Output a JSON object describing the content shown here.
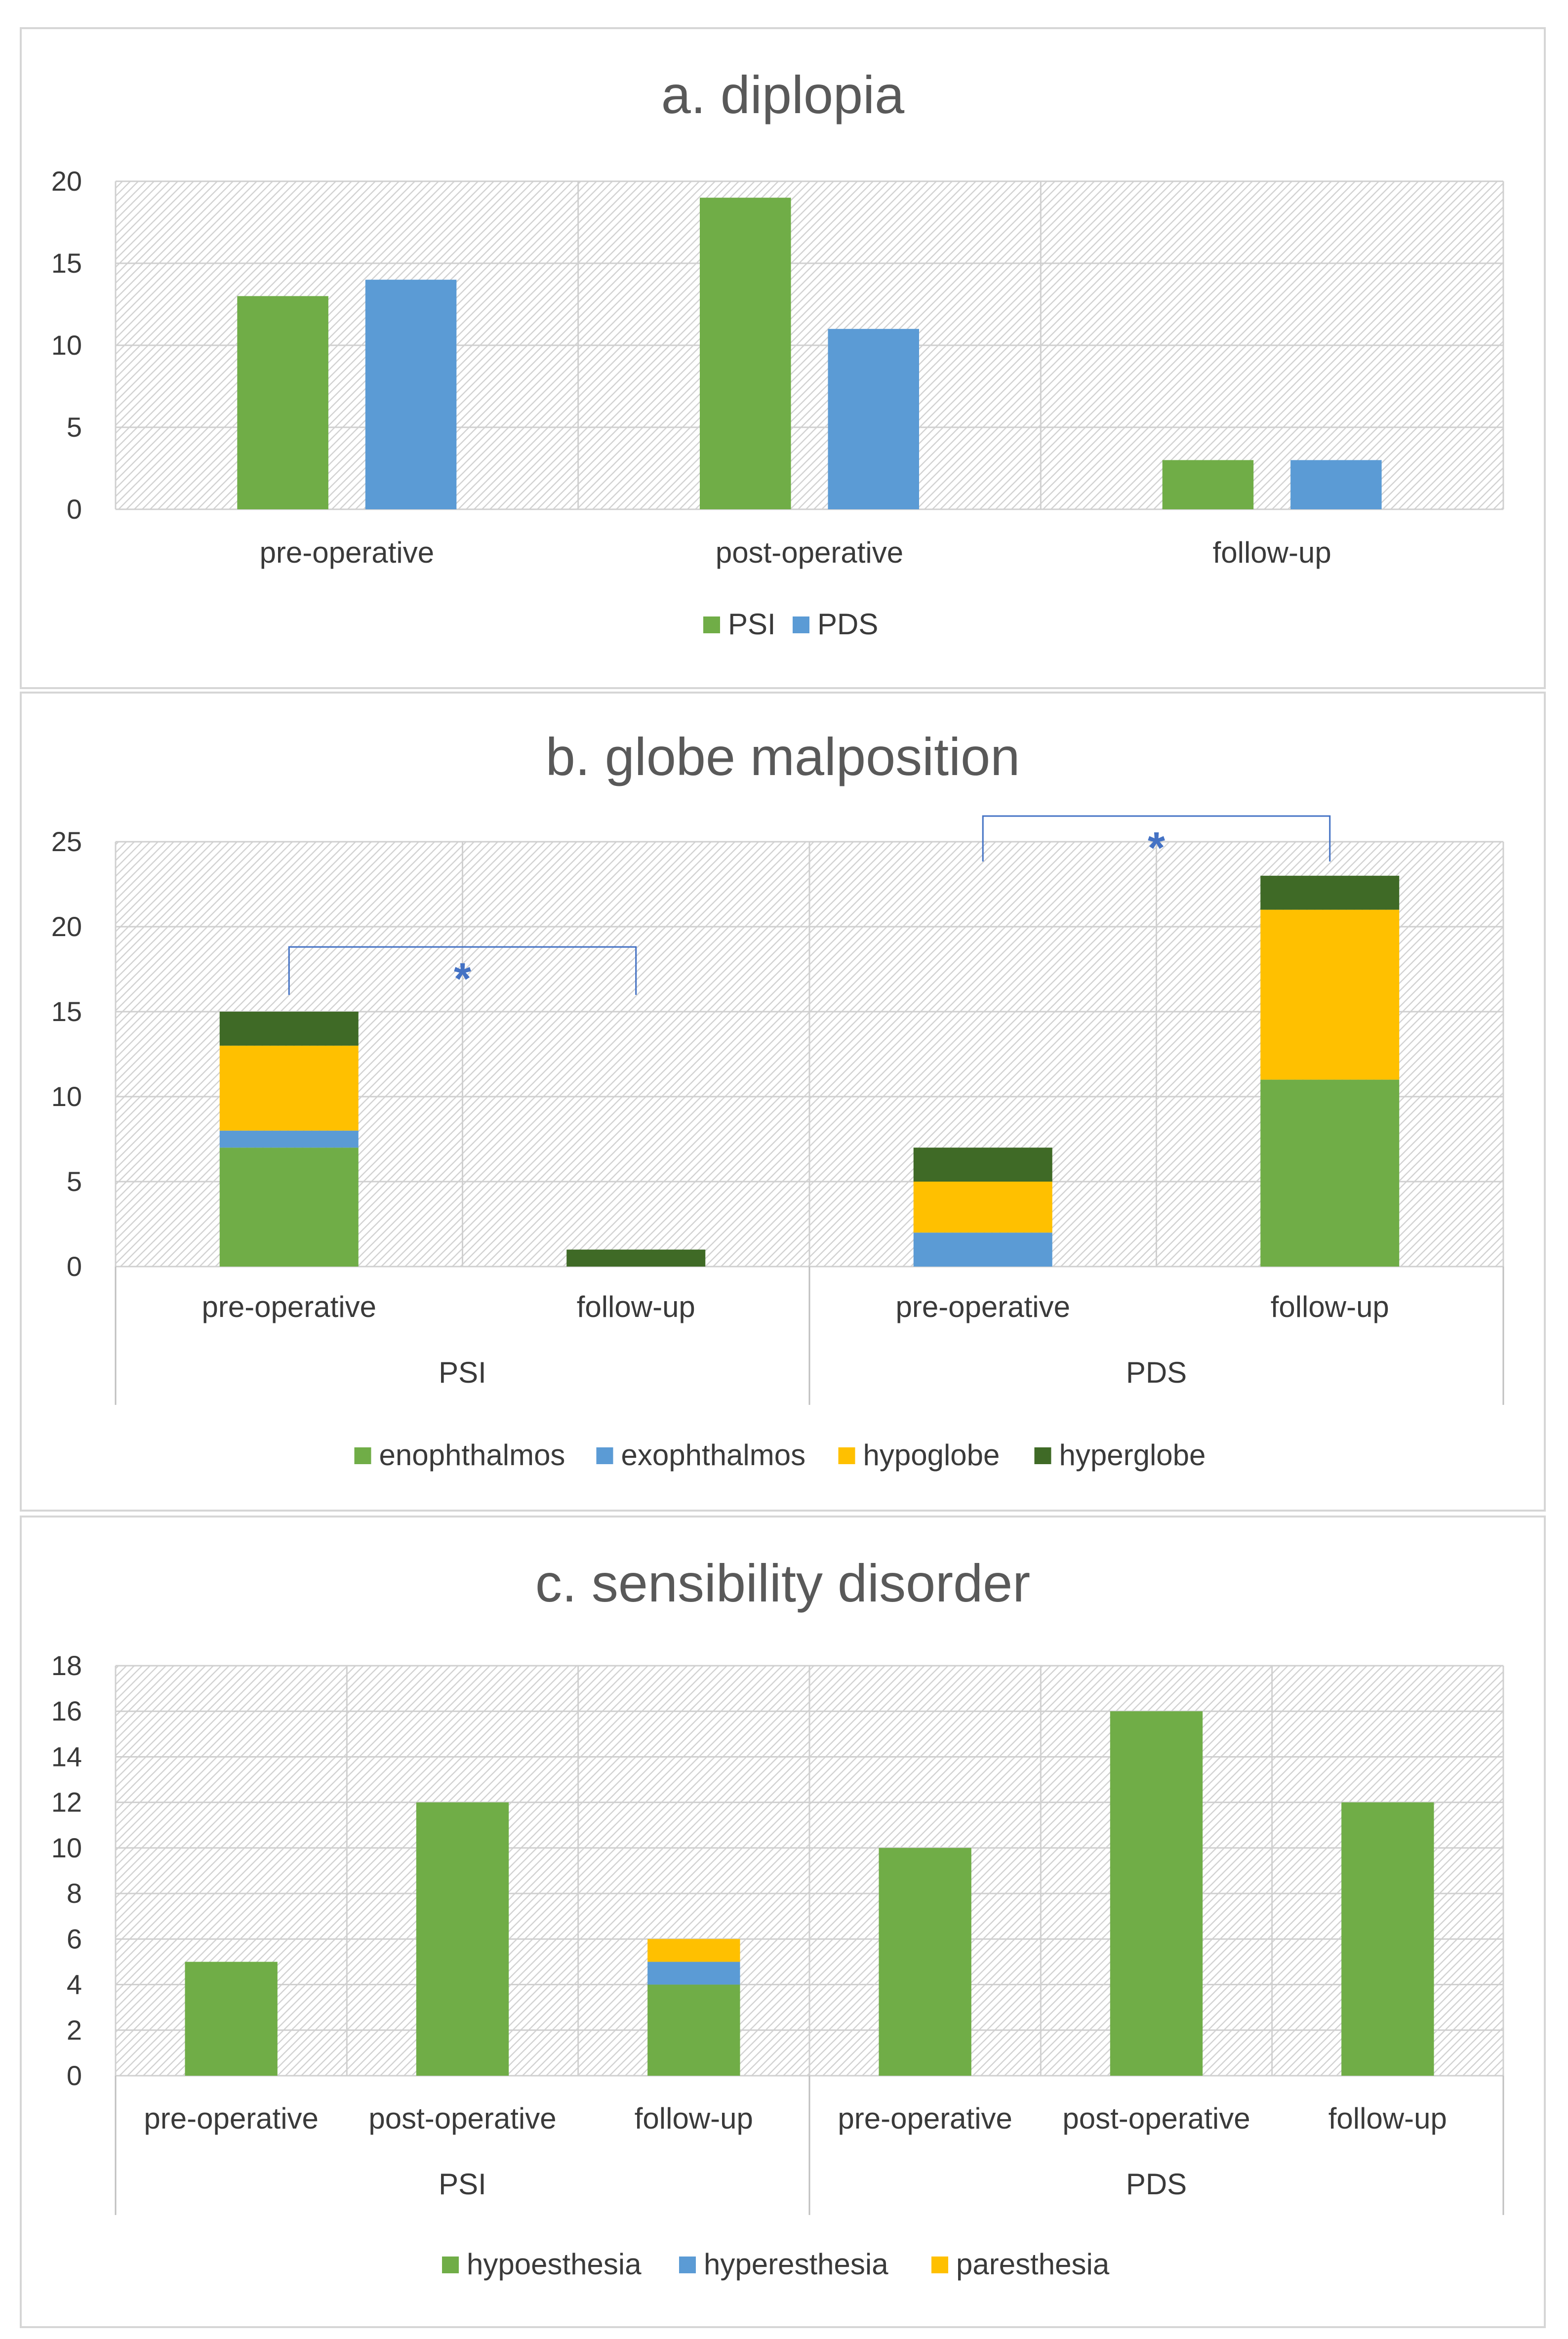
{
  "colors": {
    "PSI": "#70ad47",
    "PDS": "#5b9bd5",
    "enophthalmos": "#70ad47",
    "exophthalmos": "#5b9bd5",
    "hypoglobe": "#ffc000",
    "hyperglobe": "#3f6a26",
    "hypoesthesia": "#70ad47",
    "hyperesthesia": "#5b9bd5",
    "paresthesia": "#ffc000",
    "bracket": "#4472c4"
  },
  "chart_data": [
    {
      "type": "bar",
      "title": "a. diplopia",
      "categories": [
        "pre-operative",
        "post-operative",
        "follow-up"
      ],
      "series": [
        {
          "name": "PSI",
          "values": [
            13,
            19,
            3
          ]
        },
        {
          "name": "PDS",
          "values": [
            14,
            11,
            3
          ]
        }
      ],
      "ylim": [
        0,
        20
      ],
      "yticks": [
        "0",
        "5",
        "10",
        "15",
        "20"
      ],
      "legend": "bottom",
      "grid": true
    },
    {
      "type": "bar",
      "stacked": true,
      "title": "b. globe malposition",
      "groups": [
        "PSI",
        "PDS"
      ],
      "categories": [
        "pre-operative",
        "follow-up",
        "pre-operative",
        "follow-up"
      ],
      "series": [
        {
          "name": "enophthalmos",
          "values": [
            7,
            0,
            0,
            11
          ]
        },
        {
          "name": "exophthalmos",
          "values": [
            1,
            0,
            2,
            0
          ]
        },
        {
          "name": "hypoglobe",
          "values": [
            5,
            0,
            3,
            10
          ]
        },
        {
          "name": "hyperglobe",
          "values": [
            2,
            1,
            2,
            2
          ]
        }
      ],
      "ylim": [
        0,
        25
      ],
      "yticks": [
        "0",
        "5",
        "10",
        "15",
        "20",
        "25"
      ],
      "annotations": [
        "*",
        "*"
      ],
      "legend": "bottom",
      "grid": true
    },
    {
      "type": "bar",
      "stacked": true,
      "title": "c. sensibility disorder",
      "groups": [
        "PSI",
        "PDS"
      ],
      "categories": [
        "pre-operative",
        "post-operative",
        "follow-up",
        "pre-operative",
        "post-operative",
        "follow-up"
      ],
      "series": [
        {
          "name": "hypoesthesia",
          "values": [
            5,
            12,
            4,
            10,
            16,
            12
          ]
        },
        {
          "name": "hyperesthesia",
          "values": [
            0,
            0,
            1,
            0,
            0,
            0
          ]
        },
        {
          "name": "paresthesia",
          "values": [
            0,
            0,
            1,
            0,
            0,
            0
          ]
        }
      ],
      "ylim": [
        0,
        18
      ],
      "yticks": [
        "0",
        "2",
        "4",
        "6",
        "8",
        "10",
        "12",
        "14",
        "16",
        "18"
      ],
      "legend": "bottom",
      "grid": true
    }
  ]
}
